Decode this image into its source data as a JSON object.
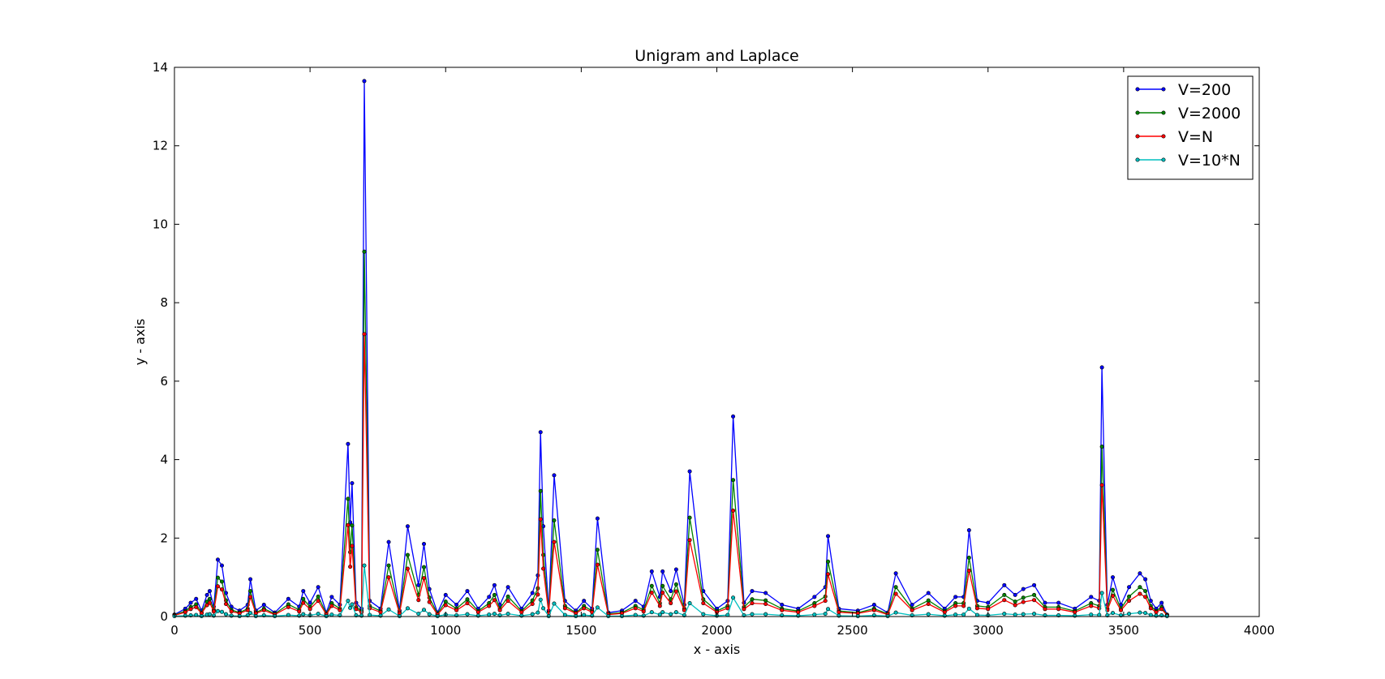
{
  "chart_data": {
    "type": "line",
    "title": "Unigram and Laplace",
    "xlabel": "x - axis",
    "ylabel": "y - axis",
    "xlim": [
      0,
      4000
    ],
    "ylim": [
      0,
      14
    ],
    "xticks": [
      "0",
      "500",
      "1000",
      "1500",
      "2000",
      "2500",
      "3000",
      "3500",
      "4000"
    ],
    "yticks": [
      "0",
      "2",
      "4",
      "6",
      "8",
      "10",
      "12",
      "14"
    ],
    "grid": false,
    "legend_position": "top-right",
    "series": [
      {
        "name": "V=200",
        "color": "#0000ff",
        "x": [
          0,
          40,
          60,
          80,
          100,
          120,
          130,
          145,
          160,
          175,
          190,
          210,
          240,
          270,
          280,
          300,
          330,
          370,
          420,
          460,
          475,
          500,
          530,
          560,
          580,
          610,
          640,
          648,
          655,
          670,
          690,
          700,
          720,
          760,
          790,
          830,
          860,
          900,
          920,
          940,
          970,
          1000,
          1040,
          1080,
          1120,
          1160,
          1180,
          1200,
          1230,
          1280,
          1320,
          1340,
          1350,
          1360,
          1380,
          1400,
          1440,
          1480,
          1510,
          1540,
          1560,
          1600,
          1650,
          1700,
          1730,
          1760,
          1790,
          1800,
          1830,
          1850,
          1880,
          1900,
          1950,
          2000,
          2040,
          2060,
          2100,
          2130,
          2180,
          2240,
          2300,
          2360,
          2400,
          2410,
          2450,
          2520,
          2580,
          2630,
          2660,
          2720,
          2780,
          2840,
          2880,
          2910,
          2930,
          2960,
          3000,
          3060,
          3100,
          3130,
          3170,
          3210,
          3260,
          3320,
          3380,
          3410,
          3420,
          3440,
          3460,
          3490,
          3520,
          3560,
          3580,
          3600,
          3620,
          3640,
          3660
        ],
        "y": [
          0.05,
          0.2,
          0.35,
          0.45,
          0.15,
          0.55,
          0.65,
          0.25,
          1.45,
          1.3,
          0.6,
          0.25,
          0.15,
          0.3,
          0.95,
          0.15,
          0.3,
          0.1,
          0.45,
          0.25,
          0.65,
          0.35,
          0.75,
          0.1,
          0.5,
          0.3,
          4.4,
          2.4,
          3.4,
          0.35,
          0.2,
          13.65,
          0.4,
          0.2,
          1.9,
          0.15,
          2.3,
          0.8,
          1.85,
          0.7,
          0.1,
          0.55,
          0.3,
          0.65,
          0.2,
          0.5,
          0.8,
          0.3,
          0.75,
          0.2,
          0.6,
          1.05,
          4.7,
          2.3,
          0.15,
          3.6,
          0.4,
          0.15,
          0.4,
          0.2,
          2.5,
          0.1,
          0.15,
          0.4,
          0.25,
          1.15,
          0.5,
          1.15,
          0.65,
          1.2,
          0.3,
          3.7,
          0.65,
          0.2,
          0.4,
          5.1,
          0.35,
          0.65,
          0.6,
          0.3,
          0.2,
          0.5,
          0.75,
          2.05,
          0.2,
          0.15,
          0.3,
          0.1,
          1.1,
          0.3,
          0.6,
          0.2,
          0.5,
          0.5,
          2.2,
          0.4,
          0.35,
          0.8,
          0.55,
          0.7,
          0.8,
          0.35,
          0.35,
          0.2,
          0.5,
          0.4,
          6.35,
          0.3,
          1.0,
          0.3,
          0.75,
          1.1,
          0.95,
          0.4,
          0.2,
          0.35,
          0.05
        ]
      },
      {
        "name": "V=2000",
        "color": "#008000",
        "x": [
          0,
          40,
          60,
          80,
          100,
          120,
          130,
          145,
          160,
          175,
          190,
          210,
          240,
          270,
          280,
          300,
          330,
          370,
          420,
          460,
          475,
          500,
          530,
          560,
          580,
          610,
          640,
          648,
          655,
          670,
          690,
          700,
          720,
          760,
          790,
          830,
          860,
          900,
          920,
          940,
          970,
          1000,
          1040,
          1080,
          1120,
          1160,
          1180,
          1200,
          1230,
          1280,
          1320,
          1340,
          1350,
          1360,
          1380,
          1400,
          1440,
          1480,
          1510,
          1540,
          1560,
          1600,
          1650,
          1700,
          1730,
          1760,
          1790,
          1800,
          1830,
          1850,
          1880,
          1900,
          1950,
          2000,
          2040,
          2060,
          2100,
          2130,
          2180,
          2240,
          2300,
          2360,
          2400,
          2410,
          2450,
          2520,
          2580,
          2630,
          2660,
          2720,
          2780,
          2840,
          2880,
          2910,
          2930,
          2960,
          3000,
          3060,
          3100,
          3130,
          3170,
          3210,
          3260,
          3320,
          3380,
          3410,
          3420,
          3440,
          3460,
          3490,
          3520,
          3560,
          3580,
          3600,
          3620,
          3640,
          3660
        ],
        "y": [
          0.04,
          0.14,
          0.24,
          0.31,
          0.1,
          0.38,
          0.45,
          0.17,
          0.99,
          0.89,
          0.41,
          0.17,
          0.1,
          0.2,
          0.65,
          0.1,
          0.2,
          0.07,
          0.31,
          0.17,
          0.45,
          0.24,
          0.51,
          0.07,
          0.34,
          0.2,
          3.0,
          1.64,
          2.32,
          0.24,
          0.14,
          9.3,
          0.27,
          0.14,
          1.3,
          0.1,
          1.57,
          0.55,
          1.26,
          0.48,
          0.07,
          0.38,
          0.2,
          0.44,
          0.14,
          0.34,
          0.55,
          0.2,
          0.51,
          0.14,
          0.41,
          0.72,
          3.2,
          1.57,
          0.1,
          2.45,
          0.27,
          0.1,
          0.27,
          0.14,
          1.7,
          0.07,
          0.1,
          0.27,
          0.17,
          0.78,
          0.34,
          0.78,
          0.44,
          0.82,
          0.2,
          2.52,
          0.44,
          0.14,
          0.27,
          3.48,
          0.24,
          0.44,
          0.41,
          0.2,
          0.14,
          0.34,
          0.51,
          1.4,
          0.14,
          0.1,
          0.2,
          0.07,
          0.75,
          0.2,
          0.41,
          0.14,
          0.34,
          0.34,
          1.5,
          0.27,
          0.24,
          0.55,
          0.38,
          0.48,
          0.55,
          0.24,
          0.24,
          0.14,
          0.34,
          0.27,
          4.33,
          0.2,
          0.68,
          0.2,
          0.51,
          0.75,
          0.65,
          0.27,
          0.14,
          0.24,
          0.04
        ]
      },
      {
        "name": "V=N",
        "color": "#ff0000",
        "x": [
          0,
          40,
          60,
          80,
          100,
          120,
          130,
          145,
          160,
          175,
          190,
          210,
          240,
          270,
          280,
          300,
          330,
          370,
          420,
          460,
          475,
          500,
          530,
          560,
          580,
          610,
          640,
          648,
          655,
          670,
          690,
          700,
          720,
          760,
          790,
          830,
          860,
          900,
          920,
          940,
          970,
          1000,
          1040,
          1080,
          1120,
          1160,
          1180,
          1200,
          1230,
          1280,
          1320,
          1340,
          1350,
          1360,
          1380,
          1400,
          1440,
          1480,
          1510,
          1540,
          1560,
          1600,
          1650,
          1700,
          1730,
          1760,
          1790,
          1800,
          1830,
          1850,
          1880,
          1900,
          1950,
          2000,
          2040,
          2060,
          2100,
          2130,
          2180,
          2240,
          2300,
          2360,
          2400,
          2410,
          2450,
          2520,
          2580,
          2630,
          2660,
          2720,
          2780,
          2840,
          2880,
          2910,
          2930,
          2960,
          3000,
          3060,
          3100,
          3130,
          3170,
          3210,
          3260,
          3320,
          3380,
          3410,
          3420,
          3440,
          3460,
          3490,
          3520,
          3560,
          3580,
          3600,
          3620,
          3640,
          3660
        ],
        "y": [
          0.03,
          0.11,
          0.19,
          0.24,
          0.08,
          0.29,
          0.35,
          0.13,
          0.77,
          0.69,
          0.32,
          0.13,
          0.08,
          0.16,
          0.5,
          0.08,
          0.16,
          0.05,
          0.24,
          0.13,
          0.35,
          0.19,
          0.4,
          0.05,
          0.27,
          0.16,
          2.33,
          1.27,
          1.8,
          0.19,
          0.11,
          7.2,
          0.21,
          0.11,
          1.0,
          0.08,
          1.22,
          0.42,
          0.98,
          0.37,
          0.05,
          0.29,
          0.16,
          0.34,
          0.11,
          0.27,
          0.42,
          0.16,
          0.4,
          0.11,
          0.32,
          0.56,
          2.48,
          1.22,
          0.08,
          1.9,
          0.21,
          0.08,
          0.21,
          0.11,
          1.32,
          0.05,
          0.08,
          0.21,
          0.13,
          0.61,
          0.27,
          0.61,
          0.34,
          0.64,
          0.16,
          1.95,
          0.34,
          0.11,
          0.21,
          2.7,
          0.19,
          0.34,
          0.32,
          0.16,
          0.11,
          0.27,
          0.4,
          1.08,
          0.11,
          0.08,
          0.16,
          0.05,
          0.58,
          0.16,
          0.32,
          0.11,
          0.27,
          0.27,
          1.17,
          0.21,
          0.19,
          0.42,
          0.29,
          0.37,
          0.42,
          0.19,
          0.19,
          0.11,
          0.27,
          0.21,
          3.35,
          0.16,
          0.53,
          0.16,
          0.4,
          0.58,
          0.5,
          0.21,
          0.11,
          0.19,
          0.03
        ]
      },
      {
        "name": "V=10*N",
        "color": "#00bfbf",
        "x": [
          0,
          40,
          60,
          80,
          100,
          120,
          130,
          145,
          160,
          175,
          190,
          210,
          240,
          270,
          280,
          300,
          330,
          370,
          420,
          460,
          475,
          500,
          530,
          560,
          580,
          610,
          640,
          648,
          655,
          670,
          690,
          700,
          720,
          760,
          790,
          830,
          860,
          900,
          920,
          940,
          970,
          1000,
          1040,
          1080,
          1120,
          1160,
          1180,
          1200,
          1230,
          1280,
          1320,
          1340,
          1350,
          1360,
          1380,
          1400,
          1440,
          1480,
          1510,
          1540,
          1560,
          1600,
          1650,
          1700,
          1730,
          1760,
          1790,
          1800,
          1830,
          1850,
          1880,
          1900,
          1950,
          2000,
          2040,
          2060,
          2100,
          2130,
          2180,
          2240,
          2300,
          2360,
          2400,
          2410,
          2450,
          2520,
          2580,
          2630,
          2660,
          2720,
          2780,
          2840,
          2880,
          2910,
          2930,
          2960,
          3000,
          3060,
          3100,
          3130,
          3170,
          3210,
          3260,
          3320,
          3380,
          3410,
          3420,
          3440,
          3460,
          3490,
          3520,
          3560,
          3580,
          3600,
          3620,
          3640,
          3660
        ],
        "y": [
          0.01,
          0.02,
          0.03,
          0.04,
          0.01,
          0.05,
          0.06,
          0.02,
          0.14,
          0.12,
          0.06,
          0.02,
          0.01,
          0.03,
          0.09,
          0.01,
          0.03,
          0.01,
          0.04,
          0.02,
          0.06,
          0.03,
          0.07,
          0.01,
          0.05,
          0.03,
          0.4,
          0.22,
          0.31,
          0.03,
          0.02,
          1.3,
          0.04,
          0.02,
          0.18,
          0.01,
          0.21,
          0.07,
          0.17,
          0.06,
          0.01,
          0.05,
          0.03,
          0.06,
          0.02,
          0.05,
          0.07,
          0.03,
          0.07,
          0.02,
          0.06,
          0.1,
          0.43,
          0.21,
          0.01,
          0.33,
          0.04,
          0.01,
          0.04,
          0.02,
          0.23,
          0.01,
          0.01,
          0.04,
          0.02,
          0.11,
          0.05,
          0.11,
          0.06,
          0.11,
          0.03,
          0.34,
          0.06,
          0.02,
          0.04,
          0.48,
          0.03,
          0.06,
          0.06,
          0.03,
          0.02,
          0.05,
          0.07,
          0.19,
          0.02,
          0.01,
          0.03,
          0.01,
          0.1,
          0.03,
          0.06,
          0.02,
          0.05,
          0.05,
          0.2,
          0.04,
          0.03,
          0.07,
          0.05,
          0.06,
          0.07,
          0.03,
          0.03,
          0.02,
          0.05,
          0.04,
          0.6,
          0.03,
          0.09,
          0.03,
          0.07,
          0.1,
          0.09,
          0.04,
          0.02,
          0.03,
          0.01
        ]
      }
    ]
  }
}
